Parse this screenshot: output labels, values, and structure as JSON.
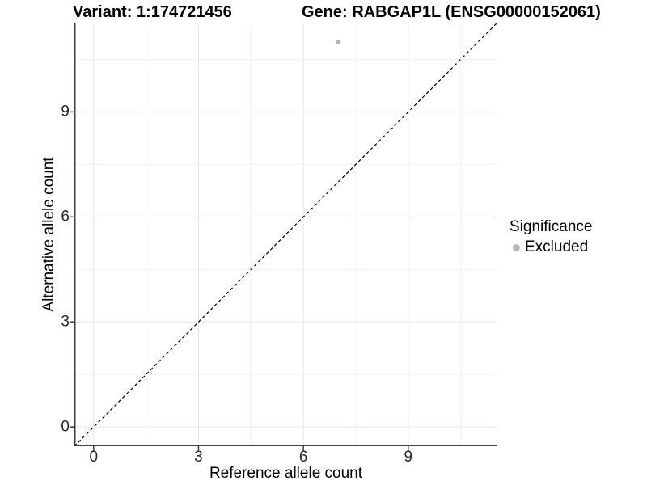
{
  "chart_data": {
    "type": "scatter",
    "title_left": "Variant: 1:174721456",
    "title_right": "Gene: RABGAP1L (ENSG00000152061)",
    "xlabel": "Reference allele count",
    "ylabel": "Alternative allele count",
    "xticks": [
      0,
      3,
      6,
      9
    ],
    "yticks": [
      0,
      3,
      6,
      9
    ],
    "xminor": [
      1.5,
      4.5,
      7.5,
      10.5
    ],
    "yminor": [
      1.5,
      4.5,
      7.5,
      10.5
    ],
    "xlim": [
      -0.55,
      11.55
    ],
    "ylim": [
      -0.55,
      11.55
    ],
    "grid": "major and minor light-gray gridlines on white panel",
    "identity_line": {
      "style": "dashed",
      "color": "#000000",
      "from": [
        -0.55,
        -0.55
      ],
      "to": [
        11.55,
        11.55
      ]
    },
    "series": [
      {
        "name": "Excluded",
        "color": "#b8b8b8",
        "points": [
          [
            7,
            11
          ]
        ]
      }
    ],
    "legend": {
      "title": "Significance",
      "position": "right",
      "entries": [
        {
          "label": "Excluded",
          "color": "#b8b8b8",
          "marker": "circle"
        }
      ]
    },
    "colors": {
      "axis_line": "#404040",
      "grid_major": "#e6e6e6",
      "grid_minor": "#f2f2f2",
      "tick_text": "#262626"
    }
  }
}
